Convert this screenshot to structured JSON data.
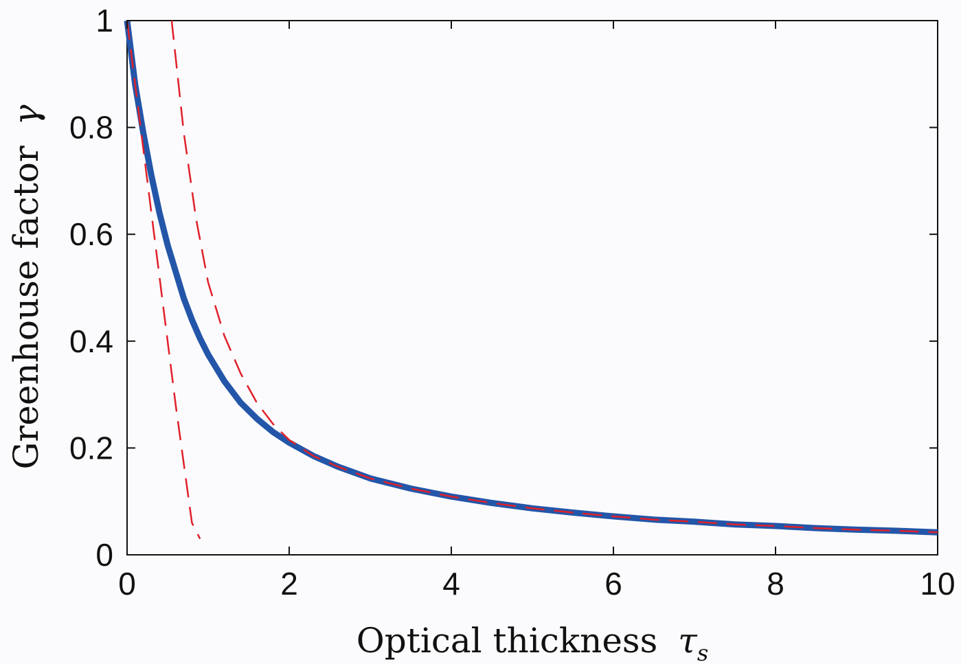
{
  "chart_data": {
    "type": "line",
    "xlabel": "Optical thickness",
    "xlabel_symbol": "τ",
    "xlabel_subscript": "s",
    "ylabel": "Greenhouse factor",
    "ylabel_symbol": "γ",
    "xlim": [
      0,
      10
    ],
    "ylim": [
      0,
      1
    ],
    "xticks": [
      "0",
      "2",
      "4",
      "6",
      "8",
      "10"
    ],
    "yticks": [
      "0",
      "0.2",
      "0.4",
      "0.6",
      "0.8",
      "1"
    ],
    "grid": false,
    "series": [
      {
        "style": "solid",
        "color": "#2356a8",
        "x": [
          0,
          0.1,
          0.2,
          0.3,
          0.4,
          0.5,
          0.6,
          0.7,
          0.8,
          0.9,
          1.0,
          1.2,
          1.4,
          1.6,
          1.8,
          2.0,
          2.3,
          2.6,
          3.0,
          3.5,
          4.0,
          4.5,
          5.0,
          5.5,
          6.0,
          6.5,
          7.0,
          7.5,
          8.0,
          8.5,
          9.0,
          9.5,
          10.0
        ],
        "y": [
          1.0,
          0.88,
          0.79,
          0.71,
          0.64,
          0.58,
          0.53,
          0.48,
          0.44,
          0.405,
          0.375,
          0.325,
          0.285,
          0.255,
          0.23,
          0.21,
          0.185,
          0.165,
          0.143,
          0.124,
          0.109,
          0.097,
          0.087,
          0.079,
          0.072,
          0.066,
          0.062,
          0.057,
          0.054,
          0.05,
          0.047,
          0.045,
          0.042
        ]
      },
      {
        "style": "dashed",
        "color": "#e0202a",
        "x": [
          0,
          0.1,
          0.2,
          0.3,
          0.4,
          0.5,
          0.6,
          0.7,
          0.8,
          0.9
        ],
        "y": [
          1.0,
          0.88,
          0.76,
          0.64,
          0.52,
          0.4,
          0.28,
          0.17,
          0.06,
          0.03
        ]
      },
      {
        "style": "dashed",
        "color": "#e0202a",
        "x": [
          0.55,
          0.7,
          0.85,
          1.0,
          1.2,
          1.4,
          1.6,
          1.8,
          2.0,
          2.3,
          2.6,
          3.0,
          3.5,
          4.0,
          4.5,
          5.0,
          5.5,
          6.0,
          6.5,
          7.0,
          7.5,
          8.0,
          8.5,
          9.0,
          9.5,
          10.0
        ],
        "y": [
          1.0,
          0.79,
          0.63,
          0.51,
          0.41,
          0.34,
          0.285,
          0.245,
          0.215,
          0.185,
          0.165,
          0.143,
          0.124,
          0.109,
          0.097,
          0.087,
          0.079,
          0.072,
          0.066,
          0.062,
          0.057,
          0.054,
          0.05,
          0.047,
          0.045,
          0.042
        ]
      }
    ]
  }
}
